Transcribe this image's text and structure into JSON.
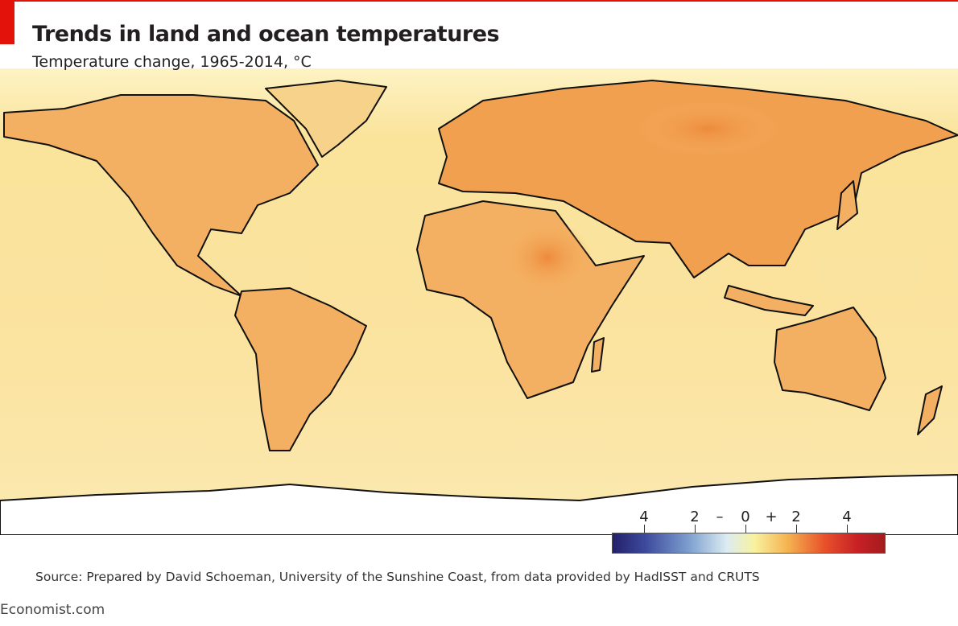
{
  "header": {
    "title": "Trends in land and ocean temperatures",
    "subtitle": "Temperature change, 1965-2014, °C"
  },
  "colors": {
    "accent": "#e3120b",
    "ocean_base": "#fbe6a0",
    "land_warm": "#f2a454",
    "antarctica": "#ffffff"
  },
  "legend": {
    "labels": [
      {
        "text": "4"
      },
      {
        "text": "2"
      },
      {
        "text": "–"
      },
      {
        "text": "0"
      },
      {
        "text": "+"
      },
      {
        "text": "2"
      },
      {
        "text": "4"
      }
    ],
    "scale_min": -5,
    "scale_max": 5,
    "colors": [
      "#23206b",
      "#3d4a9c",
      "#7d9fcf",
      "#dcecf2",
      "#f8f2a0",
      "#f5b552",
      "#e8502a",
      "#c72026",
      "#a31d1d"
    ]
  },
  "footer": {
    "source": "Source: Prepared by David Schoeman, University of the Sunshine Coast, from data provided by HadISST and CRUTS",
    "brand": "Economist.com"
  }
}
